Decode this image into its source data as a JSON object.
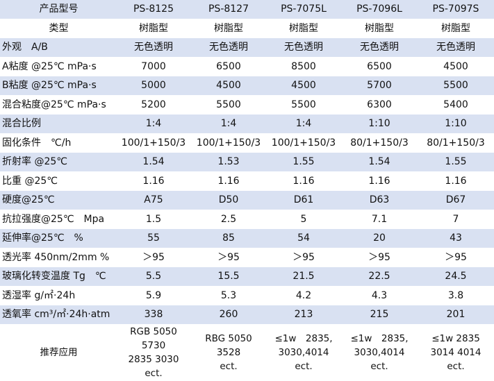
{
  "table": {
    "header": [
      "产品型号",
      "PS-8125",
      "PS-8127",
      "PS-7075L",
      "PS-7096L",
      "PS-7097S"
    ],
    "rows": [
      [
        "类型",
        "树脂型",
        "树脂型",
        "树脂型",
        "树脂型",
        "树脂型"
      ],
      [
        "外观　A/B",
        "无色透明",
        "无色透明",
        "无色透明",
        "无色透明",
        "无色透明"
      ],
      [
        "A粘度 @25℃ mPa·s",
        "7000",
        "6500",
        "8500",
        "6500",
        "4500"
      ],
      [
        "B粘度 @25℃ mPa·s",
        "5000",
        "4500",
        "4500",
        "5700",
        "5500"
      ],
      [
        "混合粘度@25℃ mPa·s",
        "5200",
        "5500",
        "5500",
        "6300",
        "5400"
      ],
      [
        "混合比例",
        "1:4",
        "1:4",
        "1:4",
        "1:10",
        "1:10"
      ],
      [
        "固化条件　℃/h",
        "100/1+150/3",
        "100/1+150/3",
        "100/1+150/3",
        "80/1+150/3",
        "80/1+150/3"
      ],
      [
        "折射率 @25℃",
        "1.54",
        "1.53",
        "1.55",
        "1.54",
        "1.55"
      ],
      [
        "比重 @25℃",
        "1.16",
        "1.16",
        "1.16",
        "1.16",
        "1.16"
      ],
      [
        "硬度@25℃",
        "A75",
        "D50",
        "D61",
        "D63",
        "D67"
      ],
      [
        "抗拉强度@25℃　Mpa",
        "1.5",
        "2.5",
        "5",
        "7.1",
        "7"
      ],
      [
        "延伸率@25℃　%",
        "55",
        "85",
        "54",
        "20",
        "43"
      ],
      [
        "透光率 450nm/2mm %",
        "＞95",
        "＞95",
        "＞95",
        "＞95",
        "＞95"
      ],
      [
        "玻璃化转变温度 Tg　℃",
        "5.5",
        "15.5",
        "21.5",
        "22.5",
        "24.5"
      ],
      [
        "透湿率 g/㎡·24h",
        "5.9",
        "5.3",
        "4.2",
        "4.3",
        "3.8"
      ],
      [
        "透氧率 cm³/㎡·24h·atm",
        "338",
        "260",
        "213",
        "215",
        "201"
      ]
    ],
    "application": {
      "label": "推荐应用",
      "values": [
        [
          "RGB 5050",
          "5730",
          "2835 3030",
          "ect."
        ],
        [
          "RBG 5050",
          "3528",
          "ect."
        ],
        [
          "≤1w　2835,",
          "3030,4014",
          "ect."
        ],
        [
          "≤1w　2835,",
          "3030,4014",
          "ect."
        ],
        [
          "≤1w 2835",
          "3014 4014",
          "ect."
        ]
      ]
    },
    "colors": {
      "row_shade": "#d9e1f2",
      "row_plain": "#ffffff",
      "text": "#111111"
    }
  }
}
